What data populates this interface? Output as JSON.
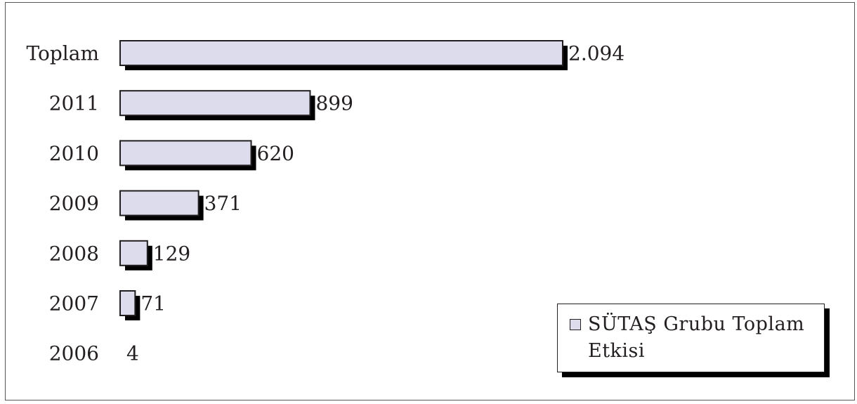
{
  "chart_data": {
    "type": "bar",
    "orientation": "horizontal",
    "categories": [
      "Toplam",
      "2011",
      "2010",
      "2009",
      "2008",
      "2007",
      "2006"
    ],
    "values": [
      2094,
      899,
      620,
      371,
      129,
      71,
      4
    ],
    "value_labels": [
      "2.094",
      "899",
      "620",
      "371",
      "129",
      "71",
      "4"
    ],
    "series": [
      {
        "name": "SÜTAŞ Grubu Toplam Etkisi",
        "values": [
          2094,
          899,
          620,
          371,
          129,
          71,
          4
        ]
      }
    ],
    "legend_position": "bottom-right",
    "grid": false,
    "colors": {
      "bar_fill": "#dcdcec",
      "bar_stroke": "#231f20",
      "shadow": "#000000"
    }
  },
  "legend": {
    "label": "SÜTAŞ Grubu Toplam Etkisi"
  }
}
